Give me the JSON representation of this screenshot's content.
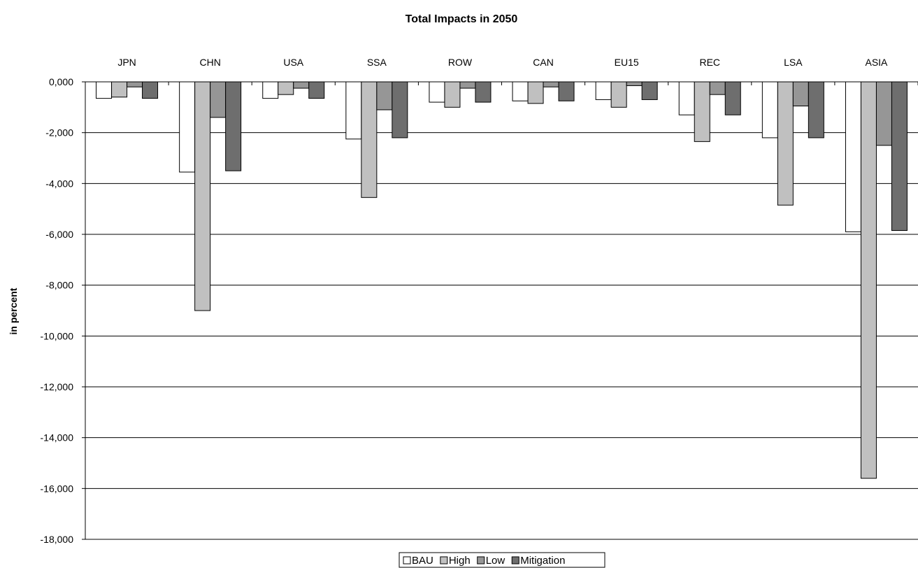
{
  "chart_data": {
    "type": "bar",
    "title": "Total Impacts in 2050",
    "xlabel": "",
    "ylabel": "in percent",
    "ylim": [
      -18,
      0
    ],
    "yticks": [
      "0,000",
      "-2,000",
      "-4,000",
      "-6,000",
      "-8,000",
      "-10,000",
      "-12,000",
      "-14,000",
      "-16,000",
      "-18,000"
    ],
    "grid": true,
    "legend_position": "bottom",
    "categories": [
      "JPN",
      "CHN",
      "USA",
      "SSA",
      "ROW",
      "CAN",
      "EU15",
      "REC",
      "LSA",
      "ASIA"
    ],
    "series": [
      {
        "name": "BAU",
        "color": "#ffffff",
        "values": [
          -0.65,
          -3.55,
          -0.65,
          -2.25,
          -0.8,
          -0.75,
          -0.7,
          -1.3,
          -2.2,
          -5.9
        ]
      },
      {
        "name": "High",
        "color": "#c0c0c0",
        "values": [
          -0.6,
          -9.0,
          -0.5,
          -4.55,
          -1.0,
          -0.85,
          -1.0,
          -2.35,
          -4.85,
          -15.6
        ]
      },
      {
        "name": "Low",
        "color": "#969696",
        "values": [
          -0.2,
          -1.4,
          -0.25,
          -1.1,
          -0.25,
          -0.2,
          -0.15,
          -0.5,
          -0.95,
          -2.5
        ]
      },
      {
        "name": "Mitigation",
        "color": "#6e6e6e",
        "values": [
          -0.65,
          -3.5,
          -0.65,
          -2.2,
          -0.8,
          -0.75,
          -0.7,
          -1.3,
          -2.2,
          -5.85
        ]
      }
    ]
  }
}
